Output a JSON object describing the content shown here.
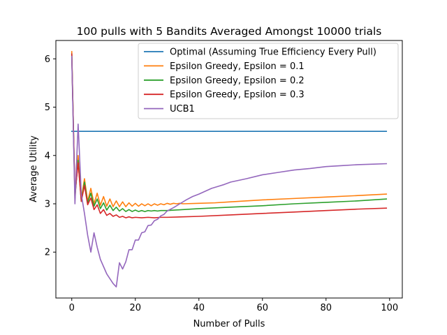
{
  "chart_data": {
    "type": "line",
    "title": "100 pulls with 5 Bandits Averaged Amongst 10000 trials",
    "xlabel": "Number of Pulls",
    "ylabel": "Average Utility",
    "xlim": [
      -5,
      104
    ],
    "ylim": [
      1.05,
      6.38
    ],
    "xticks": [
      0,
      20,
      40,
      60,
      80,
      100
    ],
    "yticks": [
      2,
      3,
      4,
      5,
      6
    ],
    "grid": false,
    "legend_position": "top-right",
    "series": [
      {
        "name": "Optimal (Assuming True Efficiency Every Pull)",
        "color": "#1f77b4",
        "x": [
          0,
          99
        ],
        "y": [
          4.5,
          4.5
        ]
      },
      {
        "name": "Epsilon Greedy, Epsilon = 0.1",
        "color": "#ff7f0e",
        "x": [
          0,
          1,
          2,
          3,
          4,
          5,
          6,
          7,
          8,
          9,
          10,
          11,
          12,
          13,
          14,
          15,
          16,
          17,
          18,
          19,
          20,
          21,
          22,
          23,
          24,
          25,
          26,
          27,
          28,
          29,
          30,
          31,
          32,
          33,
          34,
          35,
          40,
          45,
          50,
          60,
          70,
          80,
          90,
          99
        ],
        "y": [
          6.15,
          3.1,
          4.0,
          3.1,
          3.52,
          3.05,
          3.32,
          3.0,
          3.22,
          2.97,
          3.15,
          2.95,
          3.1,
          2.94,
          3.06,
          2.94,
          3.04,
          2.94,
          3.02,
          2.95,
          3.01,
          2.95,
          3.0,
          2.96,
          3.0,
          2.96,
          3.0,
          2.97,
          3.0,
          2.98,
          3.01,
          2.99,
          3.01,
          3.0,
          3.01,
          3.0,
          3.01,
          3.02,
          3.04,
          3.08,
          3.11,
          3.14,
          3.17,
          3.2
        ]
      },
      {
        "name": "Epsilon Greedy, Epsilon = 0.2",
        "color": "#2ca02c",
        "x": [
          0,
          1,
          2,
          3,
          4,
          5,
          6,
          7,
          8,
          9,
          10,
          11,
          12,
          13,
          14,
          15,
          16,
          17,
          18,
          19,
          20,
          21,
          22,
          23,
          24,
          25,
          26,
          27,
          28,
          29,
          30,
          35,
          40,
          50,
          60,
          70,
          80,
          90,
          99
        ],
        "y": [
          6.1,
          3.15,
          3.9,
          3.05,
          3.45,
          3.02,
          3.22,
          2.95,
          3.1,
          2.9,
          3.02,
          2.87,
          2.97,
          2.86,
          2.93,
          2.85,
          2.9,
          2.84,
          2.88,
          2.84,
          2.87,
          2.84,
          2.86,
          2.84,
          2.86,
          2.85,
          2.86,
          2.85,
          2.86,
          2.86,
          2.86,
          2.88,
          2.9,
          2.93,
          2.96,
          3.0,
          3.03,
          3.06,
          3.1
        ]
      },
      {
        "name": "Epsilon Greedy, Epsilon = 0.3",
        "color": "#d62728",
        "x": [
          0,
          1,
          2,
          3,
          4,
          5,
          6,
          7,
          8,
          9,
          10,
          11,
          12,
          13,
          14,
          15,
          16,
          17,
          18,
          19,
          20,
          22,
          24,
          26,
          28,
          30,
          35,
          40,
          50,
          60,
          70,
          80,
          90,
          99
        ],
        "y": [
          6.1,
          3.2,
          3.85,
          3.05,
          3.38,
          2.98,
          3.12,
          2.88,
          2.98,
          2.8,
          2.88,
          2.76,
          2.8,
          2.74,
          2.77,
          2.72,
          2.74,
          2.71,
          2.73,
          2.71,
          2.72,
          2.71,
          2.72,
          2.71,
          2.72,
          2.72,
          2.73,
          2.74,
          2.77,
          2.8,
          2.83,
          2.86,
          2.89,
          2.91
        ]
      },
      {
        "name": "UCB1",
        "color": "#9467bd",
        "x": [
          0,
          0.5,
          1,
          2,
          3,
          4,
          5,
          6,
          7,
          8,
          9,
          10,
          11,
          12,
          13,
          14,
          15,
          16,
          17,
          18,
          19,
          20,
          21,
          22,
          23,
          24,
          25,
          26,
          27,
          28,
          29,
          30,
          32,
          34,
          36,
          38,
          40,
          42,
          44,
          46,
          48,
          50,
          55,
          60,
          65,
          70,
          75,
          80,
          85,
          90,
          95,
          99
        ],
        "y": [
          6.05,
          4.5,
          3.0,
          4.65,
          3.2,
          2.8,
          2.35,
          2.0,
          2.4,
          2.1,
          1.85,
          1.7,
          1.55,
          1.45,
          1.35,
          1.28,
          1.78,
          1.65,
          1.8,
          2.05,
          2.05,
          2.25,
          2.25,
          2.4,
          2.42,
          2.55,
          2.56,
          2.65,
          2.68,
          2.75,
          2.78,
          2.85,
          2.92,
          3.0,
          3.08,
          3.15,
          3.2,
          3.26,
          3.32,
          3.36,
          3.4,
          3.45,
          3.52,
          3.6,
          3.65,
          3.7,
          3.73,
          3.77,
          3.79,
          3.81,
          3.82,
          3.83
        ]
      }
    ]
  }
}
